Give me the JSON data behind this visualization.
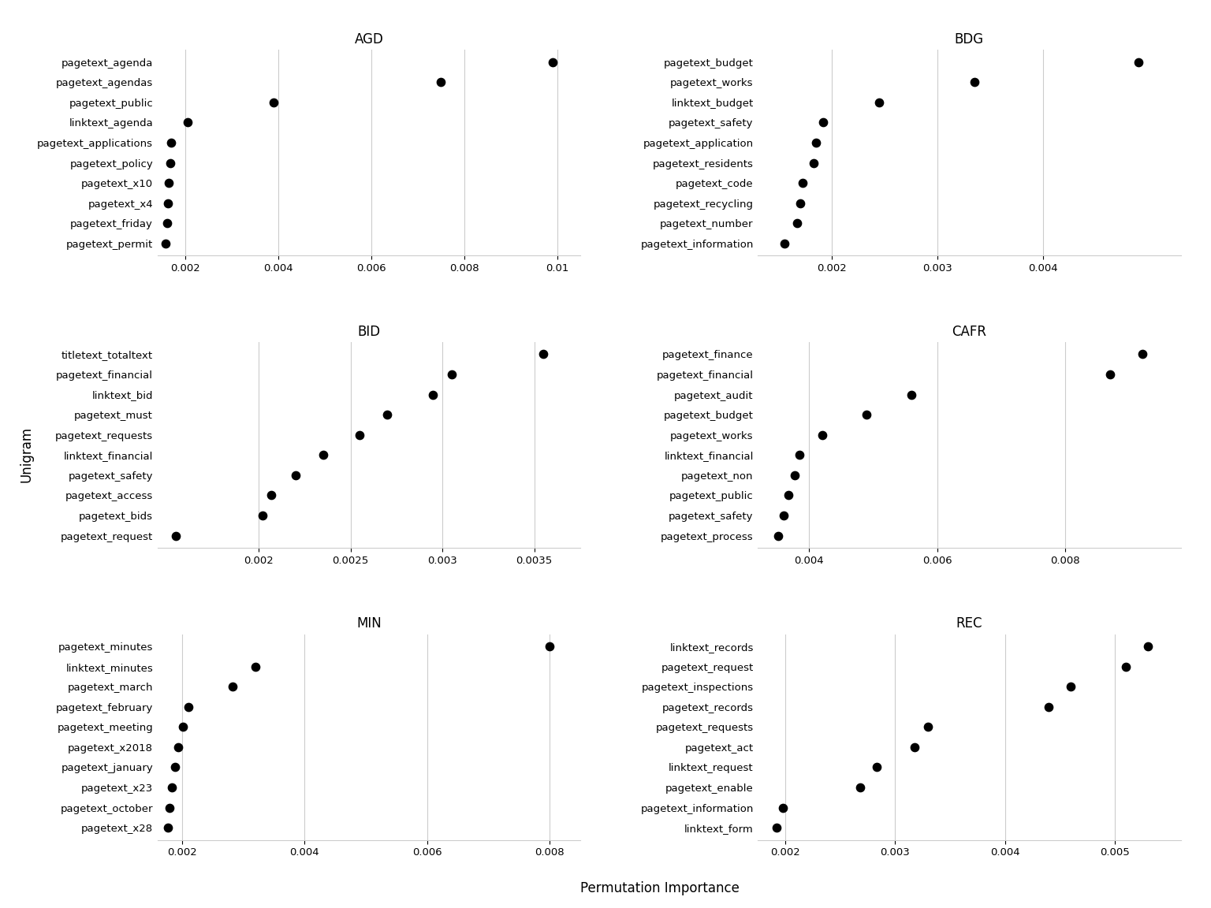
{
  "title": "Permutation Importance",
  "xlabel": "Permutation Importance",
  "ylabel": "Unigram",
  "panels": {
    "AGD": {
      "labels": [
        "pagetext_agenda",
        "pagetext_agendas",
        "pagetext_public",
        "linktext_agenda",
        "pagetext_applications",
        "pagetext_policy",
        "pagetext_x10",
        "pagetext_x4",
        "pagetext_friday",
        "pagetext_permit"
      ],
      "values": [
        0.0099,
        0.0075,
        0.0039,
        0.00205,
        0.0017,
        0.00167,
        0.00165,
        0.00163,
        0.00161,
        0.00158
      ],
      "xlim": [
        0.0014,
        0.0105
      ],
      "xticks": [
        0.002,
        0.004,
        0.006,
        0.008,
        0.01
      ]
    },
    "BDG": {
      "labels": [
        "pagetext_budget",
        "pagetext_works",
        "linktext_budget",
        "pagetext_safety",
        "pagetext_application",
        "pagetext_residents",
        "pagetext_code",
        "pagetext_recycling",
        "pagetext_number",
        "pagetext_information"
      ],
      "values": [
        0.0049,
        0.00335,
        0.00245,
        0.00192,
        0.00185,
        0.00183,
        0.00172,
        0.0017,
        0.00167,
        0.00155
      ],
      "xlim": [
        0.0013,
        0.0053
      ],
      "xticks": [
        0.002,
        0.003,
        0.004
      ]
    },
    "BID": {
      "labels": [
        "titletext_totaltext",
        "pagetext_financial",
        "linktext_bid",
        "pagetext_must",
        "pagetext_requests",
        "linktext_financial",
        "pagetext_safety",
        "pagetext_access",
        "pagetext_bids",
        "pagetext_request"
      ],
      "values": [
        0.00355,
        0.00305,
        0.00295,
        0.0027,
        0.00255,
        0.00235,
        0.0022,
        0.00207,
        0.00202,
        0.00155
      ],
      "xlim": [
        0.00145,
        0.00375
      ],
      "xticks": [
        0.002,
        0.0025,
        0.003,
        0.0035
      ]
    },
    "CAFR": {
      "labels": [
        "pagetext_finance",
        "pagetext_financial",
        "pagetext_audit",
        "pagetext_budget",
        "pagetext_works",
        "linktext_financial",
        "pagetext_non",
        "pagetext_public",
        "pagetext_safety",
        "pagetext_process"
      ],
      "values": [
        0.0092,
        0.0087,
        0.0056,
        0.0049,
        0.0042,
        0.00385,
        0.00378,
        0.00368,
        0.0036,
        0.00352
      ],
      "xlim": [
        0.0032,
        0.0098
      ],
      "xticks": [
        0.004,
        0.006,
        0.008
      ]
    },
    "MIN": {
      "labels": [
        "pagetext_minutes",
        "linktext_minutes",
        "pagetext_march",
        "pagetext_february",
        "pagetext_meeting",
        "pagetext_x2018",
        "pagetext_january",
        "pagetext_x23",
        "pagetext_october",
        "pagetext_x28"
      ],
      "values": [
        0.008,
        0.0032,
        0.00283,
        0.0021,
        0.00202,
        0.00194,
        0.00189,
        0.00183,
        0.0018,
        0.00177
      ],
      "xlim": [
        0.0016,
        0.0085
      ],
      "xticks": [
        0.002,
        0.004,
        0.006,
        0.008
      ]
    },
    "REC": {
      "labels": [
        "linktext_records",
        "pagetext_request",
        "pagetext_inspections",
        "pagetext_records",
        "pagetext_requests",
        "pagetext_act",
        "linktext_request",
        "pagetext_enable",
        "pagetext_information",
        "linktext_form"
      ],
      "values": [
        0.0053,
        0.0051,
        0.0046,
        0.0044,
        0.0033,
        0.00318,
        0.00283,
        0.00268,
        0.00198,
        0.00192
      ],
      "xlim": [
        0.00175,
        0.0056
      ],
      "xticks": [
        0.002,
        0.003,
        0.004,
        0.005
      ]
    }
  },
  "panel_order": [
    "AGD",
    "BDG",
    "BID",
    "CAFR",
    "MIN",
    "REC"
  ],
  "dot_color": "#000000",
  "dot_size": 55,
  "grid_color": "#cccccc",
  "bg_color": "#ffffff",
  "font_size": 9.5,
  "title_font_size": 12
}
